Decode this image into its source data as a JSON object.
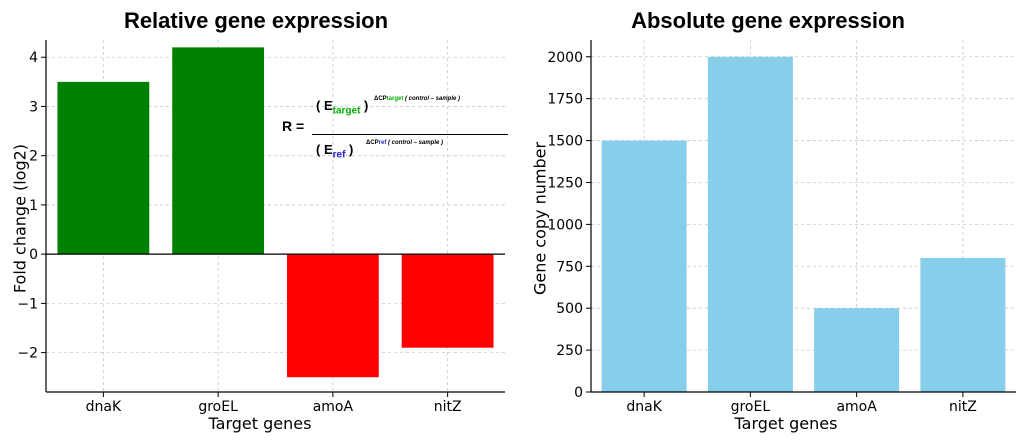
{
  "chart_data": [
    {
      "type": "bar",
      "title": "Relative gene expression",
      "xlabel": "Target genes",
      "ylabel": "Fold change (log2)",
      "categories": [
        "dnaK",
        "groEL",
        "amoA",
        "nitZ"
      ],
      "values": [
        3.5,
        4.2,
        -2.5,
        -1.9
      ],
      "colors": [
        "#008000",
        "#008000",
        "#ff0000",
        "#ff0000"
      ],
      "ylim": [
        -2.8,
        4.35
      ],
      "yticks": [
        -2,
        -1,
        0,
        1,
        2,
        3,
        4
      ],
      "ytick_labels": [
        "−2",
        "−1",
        "0",
        "1",
        "2",
        "3",
        "4"
      ],
      "grid": true
    },
    {
      "type": "bar",
      "title": "Absolute gene expression",
      "xlabel": "Target genes",
      "ylabel": "Gene copy number",
      "categories": [
        "dnaK",
        "groEL",
        "amoA",
        "nitZ"
      ],
      "values": [
        1500,
        2000,
        500,
        800
      ],
      "colors": [
        "#87ceeb",
        "#87ceeb",
        "#87ceeb",
        "#87ceeb"
      ],
      "ylim": [
        0,
        2100
      ],
      "yticks": [
        0,
        250,
        500,
        750,
        1000,
        1250,
        1500,
        1750,
        2000
      ],
      "ytick_labels": [
        "0",
        "250",
        "500",
        "750",
        "1000",
        "1250",
        "1500",
        "1750",
        "2000"
      ],
      "grid": true
    }
  ],
  "formula": {
    "r_label": "R =",
    "numerator_open": "( E",
    "numerator_sub": "target",
    "numerator_close": ")",
    "numerator_sup_prefix": "ΔCP",
    "numerator_sup_colored": "target",
    "numerator_sup_suffix": " ( control – sample )",
    "denominator_open": "( E",
    "denominator_sub": "ref",
    "denominator_close": ")",
    "denominator_sup_prefix": "ΔCP",
    "denominator_sup_colored": "ref",
    "denominator_sup_suffix": " ( control –  sample )"
  }
}
